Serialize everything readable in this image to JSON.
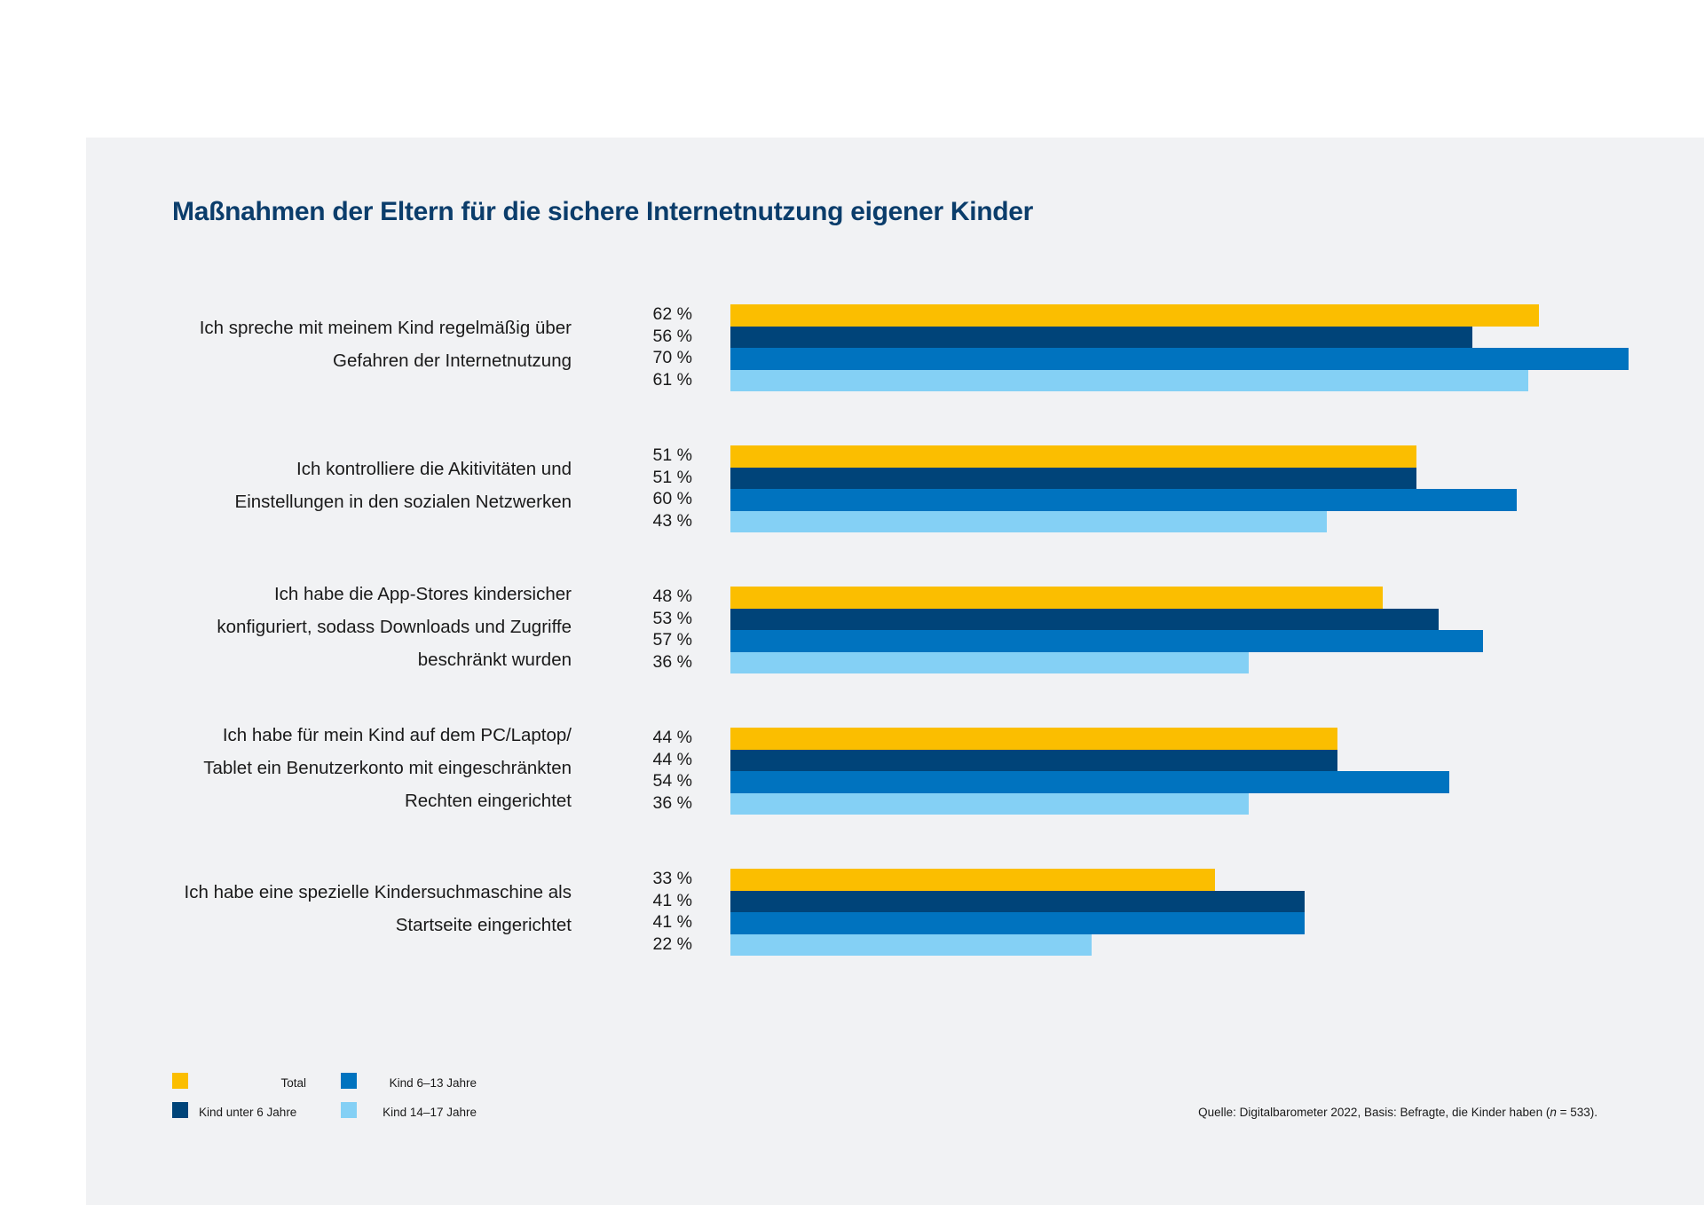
{
  "chart_data": {
    "type": "bar",
    "orientation": "horizontal",
    "title": "Maßnahmen der Eltern für die sichere Internetnutzung eigener Kinder",
    "xlabel": "",
    "ylabel": "",
    "unit": "%",
    "grid": false,
    "legend_position": "bottom-left",
    "categories": [
      [
        "Ich spreche mit meinem Kind regelmäßig über",
        "Gefahren der Internetnutzung"
      ],
      [
        "Ich kontrolliere die Akitivitäten und",
        "Einstellungen in den sozialen Netzwerken"
      ],
      [
        "Ich habe die App-Stores kindersicher",
        "konfiguriert, sodass Downloads und Zugriffe",
        "beschränkt wurden"
      ],
      [
        "Ich habe für mein Kind auf dem PC/Laptop/",
        "Tablet ein Benutzerkonto mit eingeschränkten",
        "Rechten eingerichtet"
      ],
      [
        "Ich habe eine spezielle Kindersuchmaschine als",
        "Startseite eingerichtet"
      ]
    ],
    "series": [
      {
        "name": "Total",
        "color": "#fbbe00",
        "values": [
          62,
          51,
          48,
          44,
          33
        ]
      },
      {
        "name": "Kind unter 6 Jahre",
        "color": "#004479",
        "values": [
          56,
          51,
          53,
          44,
          41
        ]
      },
      {
        "name": "Kind 6–13 Jahre",
        "color": "#0073bf",
        "values": [
          70,
          60,
          57,
          54,
          41
        ]
      },
      {
        "name": "Kind 14–17 Jahre",
        "color": "#84d0f5",
        "values": [
          61,
          43,
          36,
          36,
          22
        ]
      }
    ],
    "value_suffix": " %"
  },
  "legend": [
    {
      "label": "Total",
      "color": "#fbbe00"
    },
    {
      "label": "Kind unter 6 Jahre",
      "color": "#004479"
    },
    {
      "label": "Kind 6–13 Jahre",
      "color": "#0073bf"
    },
    {
      "label": "Kind 14–17 Jahre",
      "color": "#84d0f5"
    }
  ],
  "source": {
    "prefix": "Quelle: Digitalbarometer 2022, Basis: Befragte, die Kinder haben (",
    "n_symbol": "n",
    "suffix": " = 533)."
  }
}
